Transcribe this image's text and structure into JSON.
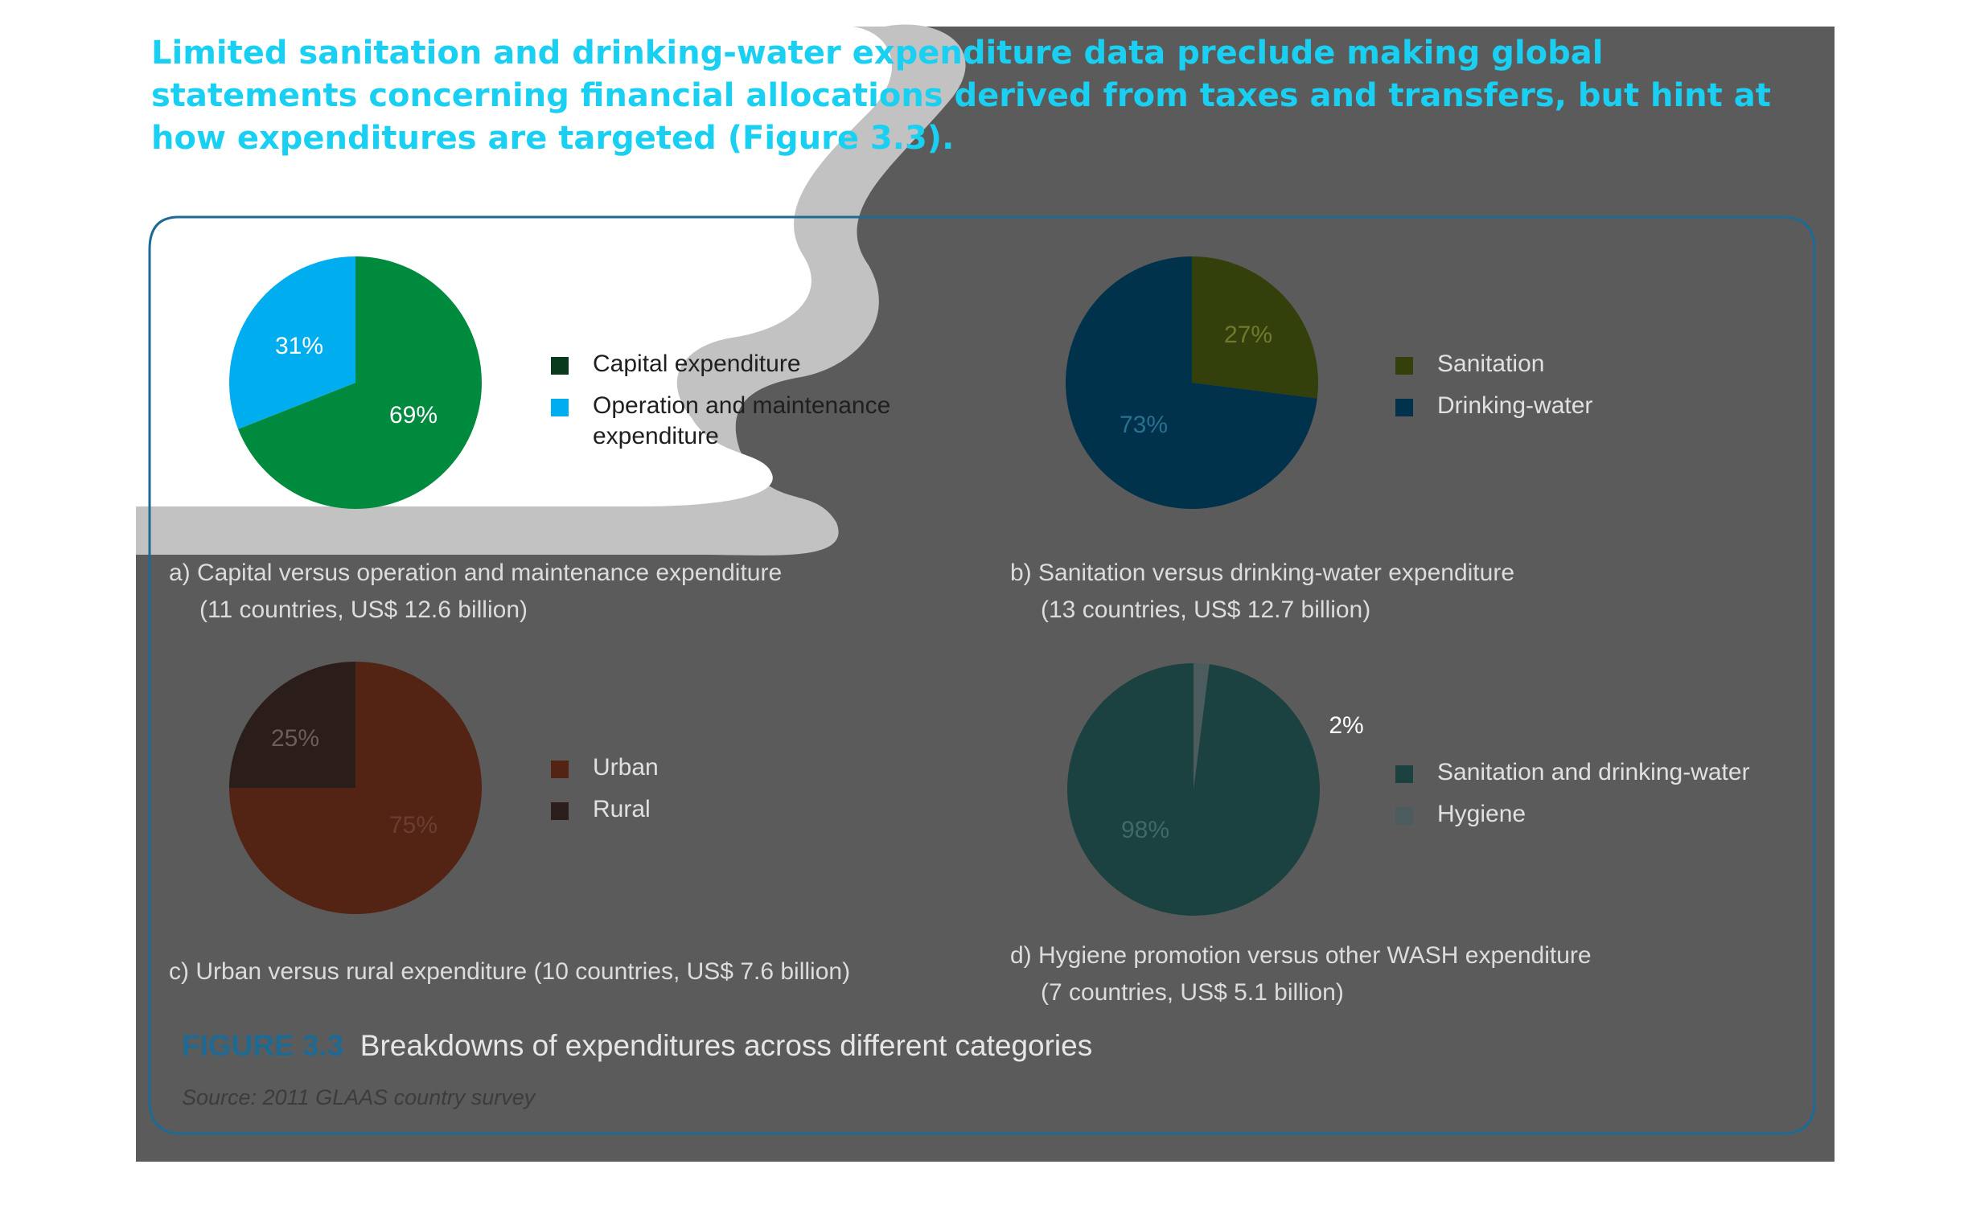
{
  "intro_text": "Limited sanitation and drinking-water expenditure data preclude making global statements concerning financial allocations derived from taxes and transfers, but hint at how expenditures are targeted (Figure 3.3).",
  "figure": {
    "number": "FIGURE 3.3",
    "title": "Breakdowns of expenditures across different categories",
    "source": "Source: 2011 GLAAS country survey"
  },
  "colors": {
    "page_bg": "#ffffff",
    "overlay": "#5b5b5b",
    "border": "#1f6a93",
    "intro": "#1ad0f2"
  },
  "chart_data": [
    {
      "type": "pie",
      "caption_line1": "a) Capital versus operation and maintenance expenditure",
      "caption_line2": "(11 countries, US$ 12.6 billion)",
      "labels": [
        "Capital expenditure",
        "Operation and maintenance expenditure"
      ],
      "values": [
        69,
        31
      ],
      "value_labels": [
        "69%",
        "31%"
      ],
      "colors": [
        "#008a3e",
        "#00aeef"
      ],
      "legend_placement": "right"
    },
    {
      "type": "pie",
      "caption_line1": "b) Sanitation versus drinking-water expenditure",
      "caption_line2": "(13 countries, US$ 12.7 billion)",
      "labels": [
        "Sanitation",
        "Drinking-water"
      ],
      "values": [
        27,
        73
      ],
      "value_labels": [
        "27%",
        "73%"
      ],
      "colors": [
        "#33400c",
        "#00324b"
      ],
      "legend_placement": "right"
    },
    {
      "type": "pie",
      "caption_line1": "c) Urban versus rural expenditure (10 countries, US$ 7.6 billion)",
      "caption_line2": "",
      "labels": [
        "Urban",
        "Rural"
      ],
      "values": [
        75,
        25
      ],
      "value_labels": [
        "75%",
        "25%"
      ],
      "colors": [
        "#532314",
        "#2a1d1a"
      ],
      "legend_placement": "right"
    },
    {
      "type": "pie",
      "caption_line1": "d) Hygiene promotion versus other WASH expenditure",
      "caption_line2": "(7 countries, US$ 5.1 billion)",
      "labels": [
        "Sanitation and drinking-water",
        "Hygiene"
      ],
      "values": [
        98,
        2
      ],
      "value_labels": [
        "98%",
        "2%"
      ],
      "colors": [
        "#1b4240",
        "#4b5b5e"
      ],
      "legend_placement": "right"
    }
  ]
}
